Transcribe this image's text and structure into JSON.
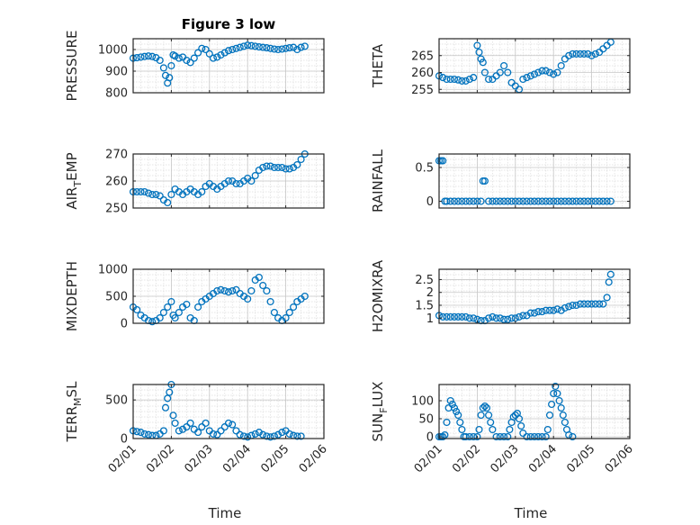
{
  "figure": {
    "title": "Figure 3 low",
    "marker_color": "#0072BD",
    "x_tick_labels": [
      "02/01",
      "02/02",
      "02/03",
      "02/04",
      "02/05",
      "02/06"
    ]
  },
  "chart_data": [
    {
      "type": "scatter",
      "title": "Figure 3 low",
      "ylabel": "PRESSURE",
      "xlabel": "",
      "xlim": [
        0,
        5
      ],
      "ylim": [
        800,
        1050
      ],
      "yticks": [
        800,
        900,
        1000
      ],
      "ytick_labels": [
        "800",
        "900",
        "1000"
      ],
      "x": [
        0,
        0.1,
        0.2,
        0.3,
        0.4,
        0.5,
        0.6,
        0.7,
        0.8,
        0.85,
        0.9,
        0.95,
        1.0,
        1.05,
        1.1,
        1.2,
        1.3,
        1.4,
        1.5,
        1.6,
        1.7,
        1.8,
        1.9,
        2.0,
        2.1,
        2.2,
        2.3,
        2.4,
        2.5,
        2.6,
        2.7,
        2.8,
        2.9,
        3.0,
        3.1,
        3.2,
        3.3,
        3.4,
        3.5,
        3.6,
        3.7,
        3.8,
        3.9,
        4.0,
        4.1,
        4.2,
        4.3,
        4.4,
        4.5
      ],
      "values": [
        960,
        962,
        965,
        968,
        970,
        968,
        962,
        950,
        915,
        880,
        845,
        870,
        925,
        975,
        970,
        960,
        965,
        950,
        940,
        960,
        985,
        1005,
        1000,
        980,
        960,
        965,
        975,
        985,
        995,
        1000,
        1005,
        1010,
        1015,
        1020,
        1018,
        1015,
        1012,
        1010,
        1008,
        1005,
        1002,
        1000,
        1002,
        1005,
        1008,
        1010,
        1000,
        1010,
        1015
      ]
    },
    {
      "type": "scatter",
      "ylabel": "THETA",
      "xlabel": "",
      "xlim": [
        0,
        5
      ],
      "ylim": [
        254,
        270
      ],
      "yticks": [
        255,
        260,
        265
      ],
      "ytick_labels": [
        "255",
        "260",
        "265"
      ],
      "x": [
        0,
        0.1,
        0.2,
        0.3,
        0.4,
        0.5,
        0.6,
        0.7,
        0.8,
        0.9,
        1.0,
        1.05,
        1.1,
        1.15,
        1.2,
        1.3,
        1.4,
        1.5,
        1.6,
        1.7,
        1.8,
        1.9,
        2.0,
        2.1,
        2.2,
        2.3,
        2.4,
        2.5,
        2.6,
        2.7,
        2.8,
        2.9,
        3.0,
        3.1,
        3.2,
        3.3,
        3.4,
        3.5,
        3.6,
        3.7,
        3.8,
        3.9,
        4.0,
        4.1,
        4.2,
        4.3,
        4.4,
        4.5
      ],
      "values": [
        259,
        258.5,
        258,
        258,
        258,
        257.8,
        257.5,
        257.5,
        258,
        258.5,
        268,
        266,
        264,
        263,
        260,
        258,
        258,
        259,
        260,
        262,
        260,
        257,
        256,
        255,
        258,
        258.5,
        259,
        259.5,
        260,
        260.5,
        260.5,
        260,
        259.5,
        260,
        262,
        264,
        265,
        265.5,
        265.5,
        265.5,
        265.5,
        265.5,
        265,
        265.5,
        266,
        267,
        268,
        269
      ]
    },
    {
      "type": "scatter",
      "ylabel": "AIR_TEMP",
      "xlabel": "",
      "xlim": [
        0,
        5
      ],
      "ylim": [
        250,
        270
      ],
      "yticks": [
        250,
        260,
        270
      ],
      "ytick_labels": [
        "250",
        "260",
        "270"
      ],
      "x": [
        0,
        0.1,
        0.2,
        0.3,
        0.4,
        0.5,
        0.6,
        0.7,
        0.8,
        0.9,
        1.0,
        1.1,
        1.2,
        1.3,
        1.4,
        1.5,
        1.6,
        1.7,
        1.8,
        1.9,
        2.0,
        2.1,
        2.2,
        2.3,
        2.4,
        2.5,
        2.6,
        2.7,
        2.8,
        2.9,
        3.0,
        3.1,
        3.2,
        3.3,
        3.4,
        3.5,
        3.6,
        3.7,
        3.8,
        3.9,
        4.0,
        4.1,
        4.2,
        4.3,
        4.4,
        4.5
      ],
      "values": [
        256,
        256,
        256,
        256,
        255.5,
        255,
        255,
        254.5,
        253,
        252,
        255,
        257,
        256,
        255,
        256,
        257,
        256,
        255,
        256,
        258,
        259,
        258,
        257,
        258,
        259,
        260,
        260,
        259,
        259,
        260,
        261,
        260,
        262,
        264,
        265,
        265.5,
        265.5,
        265,
        265,
        265,
        264.5,
        264.5,
        265,
        266,
        268,
        270
      ]
    },
    {
      "type": "scatter",
      "ylabel": "RAINFALL",
      "xlabel": "",
      "xlim": [
        0,
        5
      ],
      "ylim": [
        -0.1,
        0.7
      ],
      "yticks": [
        0,
        0.5
      ],
      "ytick_labels": [
        "0",
        "0.5"
      ],
      "x": [
        0,
        0.05,
        0.1,
        0.15,
        0.2,
        0.3,
        0.4,
        0.5,
        0.6,
        0.7,
        0.8,
        0.9,
        1.0,
        1.1,
        1.15,
        1.2,
        1.3,
        1.4,
        1.5,
        1.6,
        1.7,
        1.8,
        1.9,
        2.0,
        2.1,
        2.2,
        2.3,
        2.4,
        2.5,
        2.6,
        2.7,
        2.8,
        2.9,
        3.0,
        3.1,
        3.2,
        3.3,
        3.4,
        3.5,
        3.6,
        3.7,
        3.8,
        3.9,
        4.0,
        4.1,
        4.2,
        4.3,
        4.4,
        4.5
      ],
      "values": [
        0.6,
        0.6,
        0.6,
        0,
        0,
        0,
        0,
        0,
        0,
        0,
        0,
        0,
        0,
        0,
        0.3,
        0.3,
        0,
        0,
        0,
        0,
        0,
        0,
        0,
        0,
        0,
        0,
        0,
        0,
        0,
        0,
        0,
        0,
        0,
        0,
        0,
        0,
        0,
        0,
        0,
        0,
        0,
        0,
        0,
        0,
        0,
        0,
        0,
        0,
        0
      ]
    },
    {
      "type": "scatter",
      "ylabel": "MIXDEPTH",
      "xlabel": "",
      "xlim": [
        0,
        5
      ],
      "ylim": [
        0,
        1000
      ],
      "yticks": [
        0,
        500,
        1000
      ],
      "ytick_labels": [
        "0",
        "500",
        "1000"
      ],
      "x": [
        0,
        0.1,
        0.2,
        0.3,
        0.4,
        0.5,
        0.6,
        0.7,
        0.8,
        0.9,
        1.0,
        1.05,
        1.1,
        1.2,
        1.3,
        1.4,
        1.5,
        1.6,
        1.7,
        1.8,
        1.9,
        2.0,
        2.1,
        2.2,
        2.3,
        2.4,
        2.5,
        2.6,
        2.7,
        2.8,
        2.9,
        3.0,
        3.1,
        3.2,
        3.3,
        3.4,
        3.5,
        3.6,
        3.7,
        3.8,
        3.9,
        4.0,
        4.1,
        4.2,
        4.3,
        4.4,
        4.5
      ],
      "values": [
        300,
        250,
        150,
        100,
        50,
        30,
        50,
        100,
        200,
        300,
        400,
        150,
        100,
        200,
        300,
        350,
        100,
        50,
        300,
        400,
        450,
        500,
        550,
        600,
        620,
        600,
        580,
        600,
        620,
        550,
        500,
        450,
        600,
        800,
        850,
        700,
        600,
        400,
        200,
        100,
        50,
        100,
        200,
        300,
        400,
        450,
        500
      ]
    },
    {
      "type": "scatter",
      "ylabel": "H2OMIXRA",
      "xlabel": "",
      "xlim": [
        0,
        5
      ],
      "ylim": [
        0.8,
        2.9
      ],
      "yticks": [
        1,
        1.5,
        2,
        2.5
      ],
      "ytick_labels": [
        "1",
        "1.5",
        "2",
        "2.5"
      ],
      "x": [
        0,
        0.1,
        0.2,
        0.3,
        0.4,
        0.5,
        0.6,
        0.7,
        0.8,
        0.9,
        1.0,
        1.1,
        1.2,
        1.3,
        1.4,
        1.5,
        1.6,
        1.7,
        1.8,
        1.9,
        2.0,
        2.1,
        2.2,
        2.3,
        2.4,
        2.5,
        2.6,
        2.7,
        2.8,
        2.9,
        3.0,
        3.1,
        3.2,
        3.3,
        3.4,
        3.5,
        3.6,
        3.7,
        3.8,
        3.9,
        4.0,
        4.1,
        4.2,
        4.3,
        4.4,
        4.45,
        4.5
      ],
      "values": [
        1.1,
        1.05,
        1.05,
        1.05,
        1.05,
        1.05,
        1.05,
        1.05,
        1.0,
        1.0,
        0.95,
        0.9,
        0.9,
        1.0,
        1.05,
        1.0,
        1.0,
        0.95,
        0.95,
        1.0,
        1.0,
        1.05,
        1.1,
        1.1,
        1.2,
        1.2,
        1.25,
        1.25,
        1.3,
        1.3,
        1.3,
        1.35,
        1.3,
        1.4,
        1.45,
        1.5,
        1.5,
        1.55,
        1.55,
        1.55,
        1.55,
        1.55,
        1.55,
        1.55,
        1.8,
        2.4,
        2.7
      ]
    },
    {
      "type": "scatter",
      "ylabel": "TERR_MSL",
      "xlabel": "Time",
      "xlim": [
        0,
        5
      ],
      "ylim": [
        0,
        700
      ],
      "yticks": [
        0,
        500
      ],
      "ytick_labels": [
        "0",
        "500"
      ],
      "x": [
        0,
        0.1,
        0.2,
        0.3,
        0.4,
        0.5,
        0.6,
        0.7,
        0.8,
        0.85,
        0.9,
        0.95,
        1.0,
        1.05,
        1.1,
        1.2,
        1.3,
        1.4,
        1.5,
        1.6,
        1.7,
        1.8,
        1.9,
        2.0,
        2.1,
        2.2,
        2.3,
        2.4,
        2.5,
        2.6,
        2.7,
        2.8,
        2.9,
        3.0,
        3.1,
        3.2,
        3.3,
        3.4,
        3.5,
        3.6,
        3.7,
        3.8,
        3.9,
        4.0,
        4.1,
        4.2,
        4.3,
        4.4
      ],
      "values": [
        100,
        90,
        80,
        60,
        50,
        40,
        40,
        60,
        100,
        400,
        520,
        600,
        700,
        300,
        200,
        100,
        120,
        150,
        200,
        120,
        80,
        150,
        200,
        100,
        60,
        50,
        100,
        150,
        200,
        180,
        100,
        50,
        30,
        20,
        40,
        60,
        80,
        50,
        30,
        20,
        30,
        50,
        80,
        100,
        60,
        40,
        30,
        30
      ]
    },
    {
      "type": "scatter",
      "ylabel": "SUN_FLUX",
      "xlabel": "Time",
      "xlim": [
        0,
        5
      ],
      "ylim": [
        -5,
        145
      ],
      "yticks": [
        0,
        50,
        100
      ],
      "ytick_labels": [
        "0",
        "50",
        "100"
      ],
      "x": [
        0,
        0.05,
        0.1,
        0.15,
        0.2,
        0.25,
        0.3,
        0.35,
        0.4,
        0.45,
        0.5,
        0.55,
        0.6,
        0.65,
        0.7,
        0.8,
        0.9,
        1.0,
        1.05,
        1.1,
        1.15,
        1.2,
        1.25,
        1.3,
        1.35,
        1.4,
        1.5,
        1.6,
        1.7,
        1.8,
        1.85,
        1.9,
        1.95,
        2.0,
        2.05,
        2.1,
        2.15,
        2.2,
        2.3,
        2.4,
        2.5,
        2.6,
        2.7,
        2.8,
        2.85,
        2.9,
        2.95,
        3.0,
        3.05,
        3.1,
        3.15,
        3.2,
        3.25,
        3.3,
        3.35,
        3.4,
        3.5
      ],
      "values": [
        0,
        0,
        0,
        5,
        40,
        80,
        100,
        90,
        80,
        70,
        60,
        40,
        20,
        0,
        0,
        0,
        0,
        0,
        20,
        60,
        80,
        85,
        80,
        60,
        40,
        20,
        0,
        0,
        0,
        0,
        20,
        40,
        55,
        60,
        65,
        50,
        30,
        10,
        0,
        0,
        0,
        0,
        0,
        0,
        20,
        60,
        90,
        120,
        140,
        120,
        100,
        80,
        60,
        40,
        20,
        5,
        0
      ]
    }
  ]
}
